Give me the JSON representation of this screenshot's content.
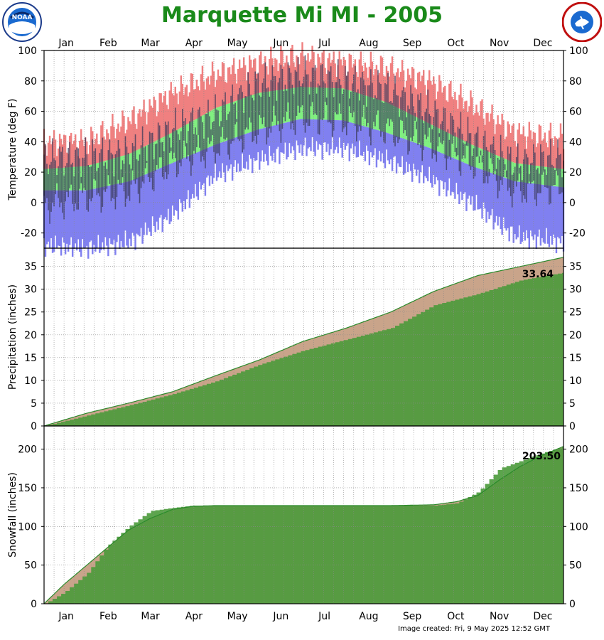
{
  "page": {
    "title": "Marquette Mi MI - 2005",
    "created": "Image created: Fri, 9 May 2025 12:52 GMT",
    "logos": [
      {
        "name": "noaa-logo",
        "text": "NOAA"
      },
      {
        "name": "nws-logo",
        "text": "NATIONAL WEATHER SERVICE"
      }
    ]
  },
  "colors": {
    "record_high_band": "#f08080",
    "normal_band": "#80f080",
    "record_low_band": "#8080f0",
    "daily_bar": "#3a3a5a",
    "observed_fill": "#4a9a3a",
    "normal_fill": "#c9a48a",
    "normal_line": "#2a8a2a",
    "grid": "#888888"
  },
  "months": [
    "Jan",
    "Feb",
    "Mar",
    "Apr",
    "May",
    "Jun",
    "Jul",
    "Aug",
    "Sep",
    "Oct",
    "Nov",
    "Dec"
  ],
  "chart_data": [
    {
      "type": "bar",
      "name": "temperature",
      "ylabel": "Temperature (deg F)",
      "ylim": [
        -30,
        100
      ],
      "yticks": [
        -20,
        0,
        20,
        40,
        60,
        80,
        100
      ],
      "grid": true,
      "x": [
        1,
        31,
        61,
        91,
        121,
        151,
        181,
        211,
        241,
        271,
        301,
        331,
        365
      ],
      "series": [
        {
          "role": "record_high",
          "values": [
            40,
            40,
            54,
            72,
            84,
            92,
            96,
            92,
            88,
            80,
            64,
            46,
            42
          ]
        },
        {
          "role": "normal_high",
          "values": [
            22,
            24,
            32,
            46,
            62,
            72,
            76,
            75,
            66,
            52,
            38,
            26,
            22
          ]
        },
        {
          "role": "normal_low",
          "values": [
            8,
            8,
            14,
            26,
            38,
            48,
            55,
            54,
            46,
            36,
            24,
            14,
            10
          ]
        },
        {
          "role": "record_low",
          "values": [
            -28,
            -30,
            -26,
            -8,
            18,
            28,
            36,
            36,
            28,
            16,
            0,
            -22,
            -26
          ]
        },
        {
          "role": "actual_high",
          "values": [
            28,
            30,
            32,
            48,
            58,
            78,
            84,
            80,
            74,
            60,
            42,
            26,
            30
          ]
        },
        {
          "role": "actual_low",
          "values": [
            -2,
            4,
            8,
            26,
            36,
            48,
            56,
            54,
            48,
            38,
            26,
            8,
            10
          ]
        }
      ]
    },
    {
      "type": "area",
      "name": "precipitation",
      "ylabel": "Precipitation (inches)",
      "ylim": [
        0,
        39
      ],
      "yticks": [
        0,
        5,
        10,
        15,
        20,
        25,
        30,
        35
      ],
      "grid": true,
      "annotation": "33.64",
      "x": [
        1,
        31,
        60,
        91,
        121,
        152,
        182,
        213,
        244,
        274,
        305,
        335,
        365
      ],
      "series": [
        {
          "role": "observed",
          "values": [
            0,
            2.3,
            4.5,
            7.0,
            9.8,
            13.5,
            16.5,
            19.0,
            21.5,
            26.5,
            29.0,
            32.0,
            33.64
          ]
        },
        {
          "role": "normal",
          "values": [
            0,
            2.8,
            5.0,
            7.5,
            11.0,
            14.5,
            18.5,
            21.5,
            25.0,
            29.5,
            33.0,
            35.0,
            37.0
          ]
        }
      ]
    },
    {
      "type": "area",
      "name": "snowfall",
      "ylabel": "Snowfall (inches)",
      "ylim": [
        0,
        230
      ],
      "yticks": [
        0,
        50,
        100,
        150,
        200
      ],
      "grid": true,
      "annotation": "203.50",
      "x": [
        1,
        15,
        31,
        45,
        60,
        75,
        91,
        105,
        121,
        152,
        182,
        213,
        244,
        274,
        290,
        305,
        320,
        335,
        350,
        365
      ],
      "series": [
        {
          "role": "observed",
          "values": [
            0,
            15,
            40,
            75,
            100,
            120,
            124,
            127,
            127,
            127,
            127,
            127,
            127,
            127,
            130,
            145,
            175,
            185,
            195,
            203.5
          ]
        },
        {
          "role": "normal",
          "values": [
            0,
            25,
            50,
            72,
            95,
            110,
            122,
            126,
            127,
            127,
            127,
            127,
            127,
            128,
            132,
            140,
            160,
            178,
            192,
            203.5
          ]
        }
      ]
    }
  ]
}
